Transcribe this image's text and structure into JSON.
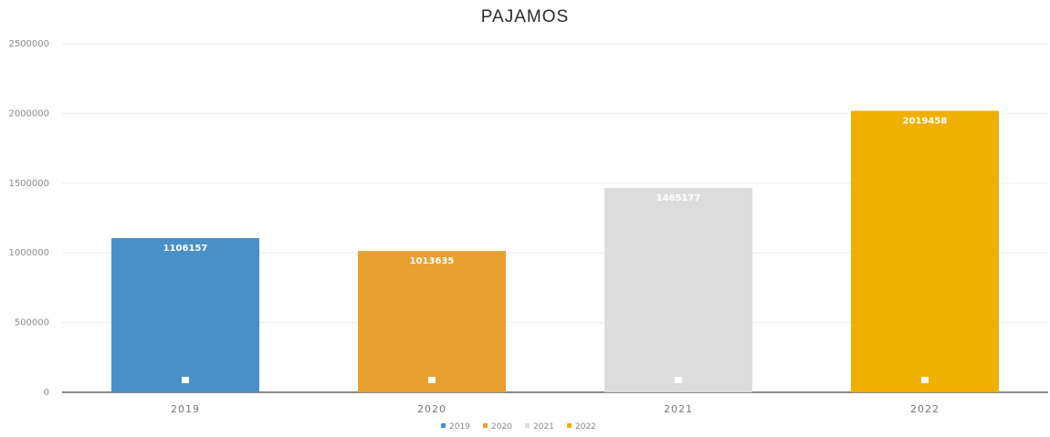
{
  "chart_data": {
    "type": "bar",
    "title": "PAJAMOS",
    "xlabel": "",
    "ylabel": "",
    "categories": [
      "2019",
      "2020",
      "2021",
      "2022"
    ],
    "values": [
      1106157,
      1013635,
      1465177,
      2019458
    ],
    "data_labels": [
      "1106157",
      "1013635",
      "1465177",
      "2019458"
    ],
    "colors": [
      "#4a90c8",
      "#e8a030",
      "#dcdcdc",
      "#f0b000"
    ],
    "ylim": [
      0,
      2500000
    ],
    "yticks": [
      0,
      500000,
      1000000,
      1500000,
      2000000,
      2500000
    ],
    "ytick_labels": [
      "0",
      "500000",
      "1000000",
      "1500000",
      "2000000",
      "2500000"
    ],
    "grid": true,
    "legend": {
      "position": "bottom",
      "entries": [
        "2019",
        "2020",
        "2021",
        "2022"
      ]
    }
  }
}
